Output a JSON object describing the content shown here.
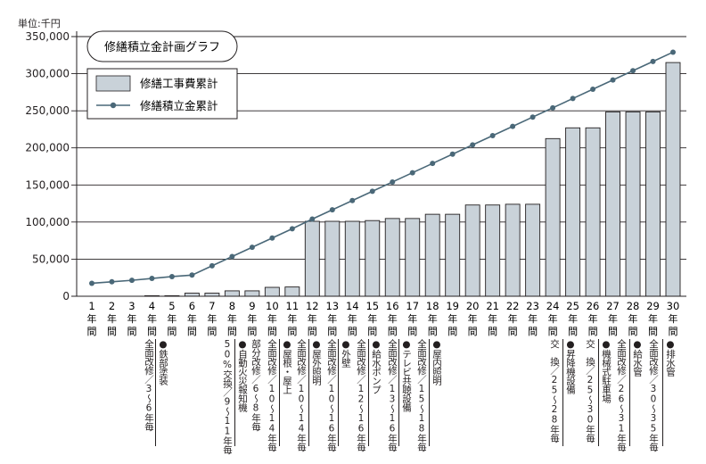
{
  "unit_label": "単位:千円",
  "colors": {
    "bar_fill": "#c9d2d9",
    "bar_stroke": "#231f20",
    "line": "#4a6878",
    "grid": "#231f20"
  },
  "chart_data": {
    "type": "bar+line",
    "title": "修繕積立金計画グラフ",
    "ylabel": "単位:千円",
    "ylim": [
      0,
      350000
    ],
    "yticks": [
      "0",
      "50,000",
      "100,000",
      "150,000",
      "200,000",
      "250,000",
      "300,000",
      "350,000"
    ],
    "ytick_values": [
      0,
      50000,
      100000,
      150000,
      200000,
      250000,
      300000,
      350000
    ],
    "grid": true,
    "legend_position": "top-left",
    "categories": [
      "1年間",
      "2年間",
      "3年間",
      "4年間",
      "5年間",
      "6年間",
      "7年間",
      "8年間",
      "9年間",
      "10年間",
      "11年間",
      "12年間",
      "13年間",
      "14年間",
      "15年間",
      "16年間",
      "17年間",
      "18年間",
      "19年間",
      "20年間",
      "21年間",
      "22年間",
      "23年間",
      "24年間",
      "25年間",
      "26年間",
      "27年間",
      "28年間",
      "29年間",
      "30年間"
    ],
    "series": [
      {
        "name": "修繕工事費累計",
        "type": "bar",
        "values": [
          0,
          0,
          0,
          700,
          700,
          4200,
          4200,
          7300,
          7300,
          12000,
          12500,
          101000,
          101000,
          101000,
          102000,
          104800,
          104800,
          110500,
          110500,
          123000,
          123000,
          124000,
          124000,
          212500,
          227000,
          227000,
          248500,
          248500,
          248500,
          315000
        ]
      },
      {
        "name": "修繕積立金累計",
        "type": "line",
        "values": [
          17500,
          19500,
          21500,
          24000,
          26500,
          28500,
          41000,
          53500,
          66000,
          78500,
          91000,
          104000,
          116500,
          129000,
          141500,
          154000,
          166500,
          179000,
          191500,
          204000,
          216500,
          229000,
          241500,
          254000,
          266500,
          279000,
          291500,
          304000,
          316500,
          329000
        ]
      }
    ]
  },
  "annotations": [
    {
      "name": "鉄部塗装",
      "notes": [
        "全面改修／3～6年毎"
      ]
    },
    {
      "name": "自動火災報知機",
      "notes": [
        "50%交換／9～11年毎"
      ]
    },
    {
      "name": "屋根・屋上",
      "notes": [
        "部分改修／6～8年毎",
        "全面改修／10～14年毎"
      ]
    },
    {
      "name": "屋外照明",
      "notes": [
        "全面改修／10～14年毎"
      ]
    },
    {
      "name": "外壁",
      "notes": [
        "全面改修／10～16年毎"
      ]
    },
    {
      "name": "給水ポンプ",
      "notes": [
        "全面改修／12～16年毎"
      ]
    },
    {
      "name": "テレビ共聴設備",
      "notes": [
        "全面改修／13～16年毎"
      ]
    },
    {
      "name": "屋内照明",
      "notes": [
        "全面改修／15～18年毎"
      ]
    },
    {
      "name": "昇降機設備",
      "notes": [
        "交　換／25～28年毎"
      ]
    },
    {
      "name": "機械式駐車場",
      "notes": [
        "交　換／25～30年毎"
      ]
    },
    {
      "name": "給水管",
      "notes": [
        "全面改修／26～31年毎"
      ]
    },
    {
      "name": "排水管",
      "notes": [
        "全面改修／30～35年毎"
      ]
    }
  ]
}
